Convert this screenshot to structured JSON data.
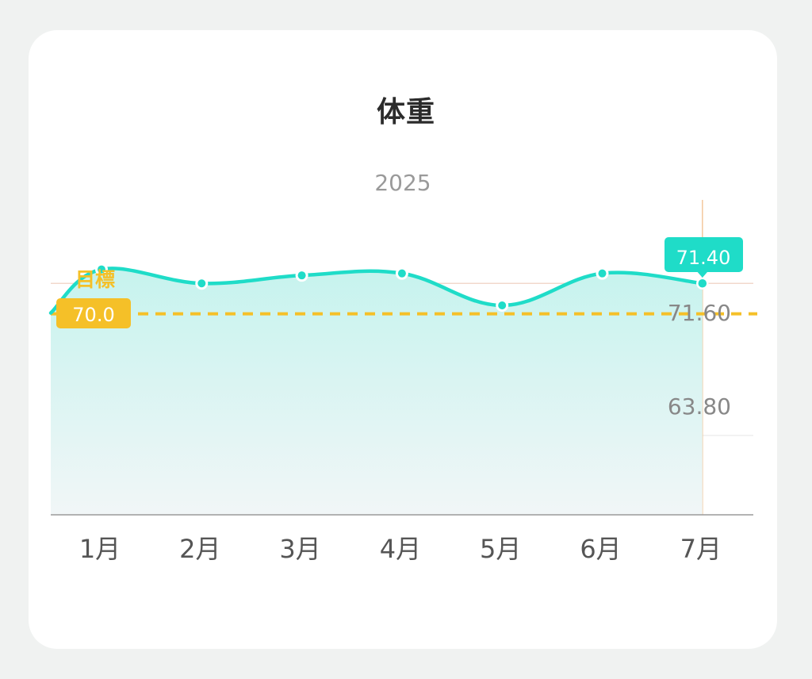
{
  "chart": {
    "title": "体重",
    "year": "2025"
  },
  "colors": {
    "line": "#1fdcc8",
    "target": "#f5c028",
    "gridline": "#f2d8cc",
    "axis": "#9a9a9a"
  },
  "chart_data": {
    "type": "area",
    "title": "体重",
    "subtitle": "2025",
    "categories": [
      "1月",
      "2月",
      "3月",
      "4月",
      "5月",
      "6月",
      "7月"
    ],
    "series": [
      {
        "name": "",
        "values": [
          72.1,
          71.4,
          71.8,
          71.9,
          70.3,
          71.9,
          71.4
        ]
      }
    ],
    "target": {
      "label": "目標",
      "value": "70.0",
      "numeric": 70.0
    },
    "y_axis_labels": [
      "71.60",
      "63.80"
    ],
    "selected": {
      "category": "7月",
      "value": "71.40"
    },
    "ylim": [
      63.8,
      72.6
    ],
    "grid": true
  }
}
